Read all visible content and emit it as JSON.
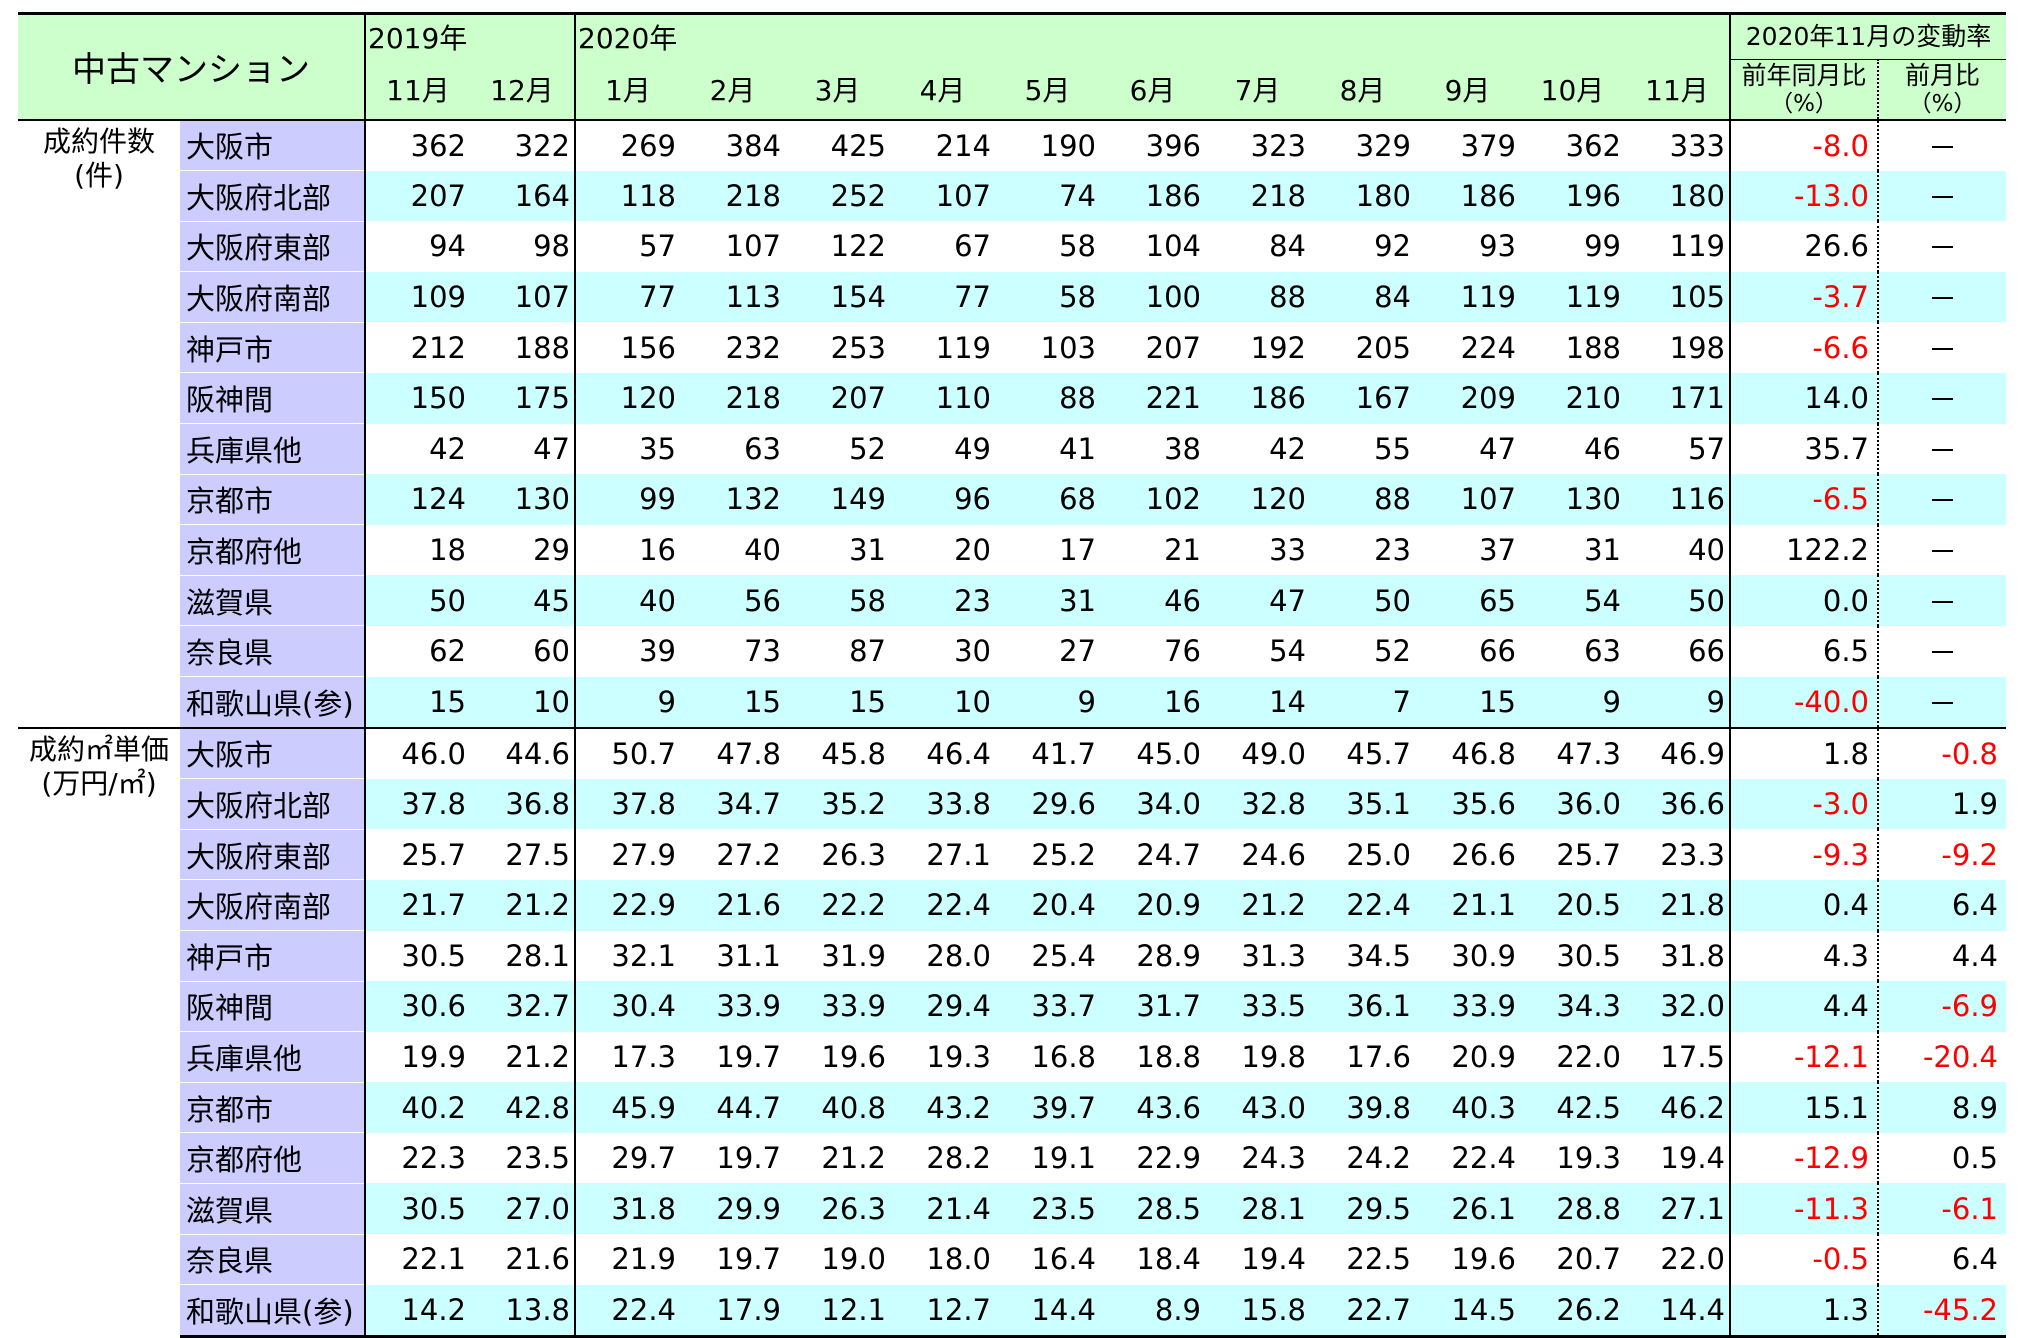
{
  "header": {
    "title": "中古マンション",
    "year2019": "2019年",
    "year2020": "2020年",
    "months": [
      "11月",
      "12月",
      "1月",
      "2月",
      "3月",
      "4月",
      "5月",
      "6月",
      "7月",
      "8月",
      "9月",
      "10月",
      "11月"
    ],
    "rate_title": "2020年11月の変動率",
    "yoy_label": "前年同月比",
    "mom_label": "前月比",
    "pct_label": "（%）"
  },
  "sections": [
    {
      "label_line1": "成約件数",
      "label_line2": "(件)",
      "rows": [
        {
          "region": "大阪市",
          "values": [
            "362",
            "322",
            "269",
            "384",
            "425",
            "214",
            "190",
            "396",
            "323",
            "329",
            "379",
            "362",
            "333"
          ],
          "yoy": "-8.0",
          "mom": "－"
        },
        {
          "region": "大阪府北部",
          "values": [
            "207",
            "164",
            "118",
            "218",
            "252",
            "107",
            "74",
            "186",
            "218",
            "180",
            "186",
            "196",
            "180"
          ],
          "yoy": "-13.0",
          "mom": "－"
        },
        {
          "region": "大阪府東部",
          "values": [
            "94",
            "98",
            "57",
            "107",
            "122",
            "67",
            "58",
            "104",
            "84",
            "92",
            "93",
            "99",
            "119"
          ],
          "yoy": "26.6",
          "mom": "－"
        },
        {
          "region": "大阪府南部",
          "values": [
            "109",
            "107",
            "77",
            "113",
            "154",
            "77",
            "58",
            "100",
            "88",
            "84",
            "119",
            "119",
            "105"
          ],
          "yoy": "-3.7",
          "mom": "－"
        },
        {
          "region": "神戸市",
          "values": [
            "212",
            "188",
            "156",
            "232",
            "253",
            "119",
            "103",
            "207",
            "192",
            "205",
            "224",
            "188",
            "198"
          ],
          "yoy": "-6.6",
          "mom": "－"
        },
        {
          "region": "阪神間",
          "values": [
            "150",
            "175",
            "120",
            "218",
            "207",
            "110",
            "88",
            "221",
            "186",
            "167",
            "209",
            "210",
            "171"
          ],
          "yoy": "14.0",
          "mom": "－"
        },
        {
          "region": "兵庫県他",
          "values": [
            "42",
            "47",
            "35",
            "63",
            "52",
            "49",
            "41",
            "38",
            "42",
            "55",
            "47",
            "46",
            "57"
          ],
          "yoy": "35.7",
          "mom": "－"
        },
        {
          "region": "京都市",
          "values": [
            "124",
            "130",
            "99",
            "132",
            "149",
            "96",
            "68",
            "102",
            "120",
            "88",
            "107",
            "130",
            "116"
          ],
          "yoy": "-6.5",
          "mom": "－"
        },
        {
          "region": "京都府他",
          "values": [
            "18",
            "29",
            "16",
            "40",
            "31",
            "20",
            "17",
            "21",
            "33",
            "23",
            "37",
            "31",
            "40"
          ],
          "yoy": "122.2",
          "mom": "－"
        },
        {
          "region": "滋賀県",
          "values": [
            "50",
            "45",
            "40",
            "56",
            "58",
            "23",
            "31",
            "46",
            "47",
            "50",
            "65",
            "54",
            "50"
          ],
          "yoy": "0.0",
          "mom": "－"
        },
        {
          "region": "奈良県",
          "values": [
            "62",
            "60",
            "39",
            "73",
            "87",
            "30",
            "27",
            "76",
            "54",
            "52",
            "66",
            "63",
            "66"
          ],
          "yoy": "6.5",
          "mom": "－"
        },
        {
          "region": "和歌山県(参)",
          "values": [
            "15",
            "10",
            "9",
            "15",
            "15",
            "10",
            "9",
            "16",
            "14",
            "7",
            "15",
            "9",
            "9"
          ],
          "yoy": "-40.0",
          "mom": "－"
        }
      ]
    },
    {
      "label_line1": "成約㎡単価",
      "label_line2": "(万円/㎡)",
      "rows": [
        {
          "region": "大阪市",
          "values": [
            "46.0",
            "44.6",
            "50.7",
            "47.8",
            "45.8",
            "46.4",
            "41.7",
            "45.0",
            "49.0",
            "45.7",
            "46.8",
            "47.3",
            "46.9"
          ],
          "yoy": "1.8",
          "mom": "-0.8"
        },
        {
          "region": "大阪府北部",
          "values": [
            "37.8",
            "36.8",
            "37.8",
            "34.7",
            "35.2",
            "33.8",
            "29.6",
            "34.0",
            "32.8",
            "35.1",
            "35.6",
            "36.0",
            "36.6"
          ],
          "yoy": "-3.0",
          "mom": "1.9"
        },
        {
          "region": "大阪府東部",
          "values": [
            "25.7",
            "27.5",
            "27.9",
            "27.2",
            "26.3",
            "27.1",
            "25.2",
            "24.7",
            "24.6",
            "25.0",
            "26.6",
            "25.7",
            "23.3"
          ],
          "yoy": "-9.3",
          "mom": "-9.2"
        },
        {
          "region": "大阪府南部",
          "values": [
            "21.7",
            "21.2",
            "22.9",
            "21.6",
            "22.2",
            "22.4",
            "20.4",
            "20.9",
            "21.2",
            "22.4",
            "21.1",
            "20.5",
            "21.8"
          ],
          "yoy": "0.4",
          "mom": "6.4"
        },
        {
          "region": "神戸市",
          "values": [
            "30.5",
            "28.1",
            "32.1",
            "31.1",
            "31.9",
            "28.0",
            "25.4",
            "28.9",
            "31.3",
            "34.5",
            "30.9",
            "30.5",
            "31.8"
          ],
          "yoy": "4.3",
          "mom": "4.4"
        },
        {
          "region": "阪神間",
          "values": [
            "30.6",
            "32.7",
            "30.4",
            "33.9",
            "33.9",
            "29.4",
            "33.7",
            "31.7",
            "33.5",
            "36.1",
            "33.9",
            "34.3",
            "32.0"
          ],
          "yoy": "4.4",
          "mom": "-6.9"
        },
        {
          "region": "兵庫県他",
          "values": [
            "19.9",
            "21.2",
            "17.3",
            "19.7",
            "19.6",
            "19.3",
            "16.8",
            "18.8",
            "19.8",
            "17.6",
            "20.9",
            "22.0",
            "17.5"
          ],
          "yoy": "-12.1",
          "mom": "-20.4"
        },
        {
          "region": "京都市",
          "values": [
            "40.2",
            "42.8",
            "45.9",
            "44.7",
            "40.8",
            "43.2",
            "39.7",
            "43.6",
            "43.0",
            "39.8",
            "40.3",
            "42.5",
            "46.2"
          ],
          "yoy": "15.1",
          "mom": "8.9"
        },
        {
          "region": "京都府他",
          "values": [
            "22.3",
            "23.5",
            "29.7",
            "19.7",
            "21.2",
            "28.2",
            "19.1",
            "22.9",
            "24.3",
            "24.2",
            "22.4",
            "19.3",
            "19.4"
          ],
          "yoy": "-12.9",
          "mom": "0.5"
        },
        {
          "region": "滋賀県",
          "values": [
            "30.5",
            "27.0",
            "31.8",
            "29.9",
            "26.3",
            "21.4",
            "23.5",
            "28.5",
            "28.1",
            "29.5",
            "26.1",
            "28.8",
            "27.1"
          ],
          "yoy": "-11.3",
          "mom": "-6.1"
        },
        {
          "region": "奈良県",
          "values": [
            "22.1",
            "21.6",
            "21.9",
            "19.7",
            "19.0",
            "18.0",
            "16.4",
            "18.4",
            "19.4",
            "22.5",
            "19.6",
            "20.7",
            "22.0"
          ],
          "yoy": "-0.5",
          "mom": "6.4"
        },
        {
          "region": "和歌山県(参)",
          "values": [
            "14.2",
            "13.8",
            "22.4",
            "17.9",
            "12.1",
            "12.7",
            "14.4",
            "8.9",
            "15.8",
            "22.7",
            "14.5",
            "26.2",
            "14.4"
          ],
          "yoy": "1.3",
          "mom": "-45.2"
        }
      ]
    }
  ],
  "colors": {
    "header_bg": "#ccffcc",
    "region_bg": "#ccccff",
    "alt_row_bg": "#ccffff",
    "negative": "#ff0000"
  }
}
